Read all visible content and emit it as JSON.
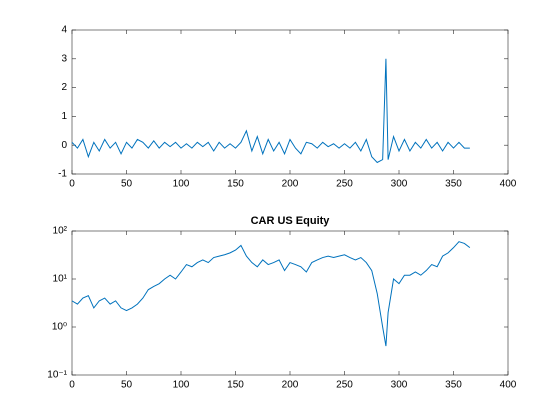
{
  "chart_data": [
    {
      "type": "line",
      "x": [
        0,
        5,
        10,
        15,
        20,
        25,
        30,
        35,
        40,
        45,
        50,
        55,
        60,
        65,
        70,
        75,
        80,
        85,
        90,
        95,
        100,
        105,
        110,
        115,
        120,
        125,
        130,
        135,
        140,
        145,
        150,
        155,
        160,
        165,
        170,
        175,
        180,
        185,
        190,
        195,
        200,
        205,
        210,
        215,
        220,
        225,
        230,
        235,
        240,
        245,
        250,
        255,
        260,
        265,
        270,
        275,
        280,
        285,
        288,
        290,
        295,
        300,
        305,
        310,
        315,
        320,
        325,
        330,
        335,
        340,
        345,
        350,
        355,
        360,
        365
      ],
      "series": [
        {
          "color": "#0072bd",
          "values": [
            0.1,
            -0.1,
            0.2,
            -0.4,
            0.1,
            -0.2,
            0.2,
            -0.1,
            0.1,
            -0.3,
            0.1,
            -0.1,
            0.2,
            0.1,
            -0.1,
            0.15,
            -0.1,
            0.1,
            -0.05,
            0.1,
            -0.1,
            0.05,
            -0.1,
            0.1,
            -0.05,
            0.1,
            -0.2,
            0.1,
            -0.1,
            0.05,
            -0.1,
            0.1,
            0.5,
            -0.2,
            0.3,
            -0.3,
            0.2,
            -0.2,
            0.1,
            -0.3,
            0.2,
            -0.1,
            -0.3,
            0.1,
            0.05,
            -0.1,
            0.1,
            -0.05,
            0.05,
            -0.1,
            0.05,
            -0.1,
            0.1,
            -0.2,
            0.2,
            -0.4,
            -0.6,
            -0.5,
            3.0,
            -0.5,
            0.3,
            -0.2,
            0.2,
            -0.2,
            0.1,
            -0.1,
            0.2,
            -0.1,
            0.1,
            -0.2,
            0.1,
            -0.1,
            0.1,
            -0.1,
            -0.1
          ]
        }
      ],
      "xlim": [
        0,
        400
      ],
      "xticks": [
        0,
        50,
        100,
        150,
        200,
        250,
        300,
        350,
        400
      ],
      "ylim": [
        -1,
        4
      ],
      "yticks": [
        -1,
        0,
        1,
        2,
        3,
        4
      ],
      "yscale": "linear"
    },
    {
      "type": "line",
      "title": "CAR US Equity",
      "x": [
        0,
        5,
        10,
        15,
        20,
        25,
        30,
        35,
        40,
        45,
        50,
        55,
        60,
        65,
        70,
        75,
        80,
        85,
        90,
        95,
        100,
        105,
        110,
        115,
        120,
        125,
        130,
        135,
        140,
        145,
        150,
        155,
        160,
        165,
        170,
        175,
        180,
        185,
        190,
        195,
        200,
        205,
        210,
        215,
        220,
        225,
        230,
        235,
        240,
        245,
        250,
        255,
        260,
        265,
        270,
        275,
        280,
        285,
        288,
        290,
        295,
        300,
        305,
        310,
        315,
        320,
        325,
        330,
        335,
        340,
        345,
        350,
        355,
        360,
        365
      ],
      "series": [
        {
          "color": "#0072bd",
          "values": [
            3.5,
            3,
            4,
            4.5,
            2.5,
            3.5,
            4,
            3,
            3.5,
            2.5,
            2.2,
            2.5,
            3,
            4,
            6,
            7,
            8,
            10,
            12,
            10,
            14,
            20,
            18,
            22,
            25,
            22,
            28,
            30,
            32,
            35,
            40,
            50,
            30,
            22,
            18,
            25,
            20,
            22,
            25,
            15,
            22,
            20,
            18,
            14,
            22,
            25,
            28,
            30,
            28,
            30,
            32,
            28,
            25,
            28,
            22,
            15,
            5,
            1,
            0.4,
            2,
            10,
            8,
            12,
            12,
            14,
            12,
            15,
            20,
            18,
            30,
            35,
            45,
            60,
            55,
            45
          ]
        }
      ],
      "xlim": [
        0,
        400
      ],
      "xticks": [
        0,
        50,
        100,
        150,
        200,
        250,
        300,
        350,
        400
      ],
      "ylim": [
        0.1,
        100
      ],
      "yscale": "log",
      "yticks": [
        {
          "value": 0.1,
          "label": "10⁻¹"
        },
        {
          "value": 1,
          "label": "10⁰"
        },
        {
          "value": 10,
          "label": "10¹"
        },
        {
          "value": 100,
          "label": "10²"
        }
      ]
    }
  ]
}
